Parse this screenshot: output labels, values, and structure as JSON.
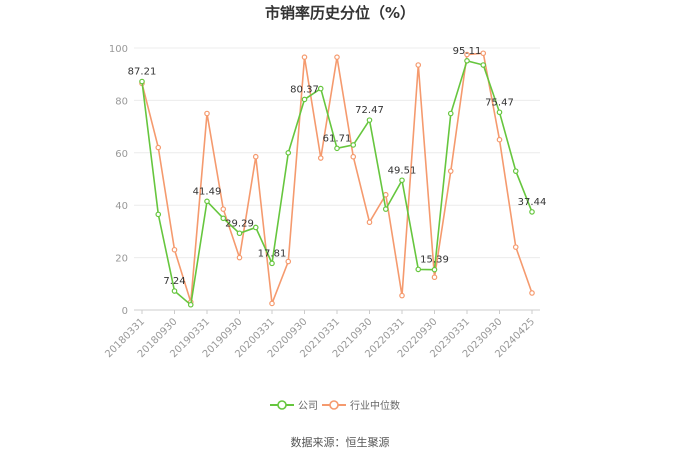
{
  "chart_data": {
    "type": "line",
    "title": "市销率历史分位（%）",
    "source": "数据来源：恒生聚源",
    "ylim": [
      0,
      100
    ],
    "yticks": [
      0,
      20,
      40,
      60,
      80,
      100
    ],
    "xtick_labels": [
      "20180331",
      "20180930",
      "20190331",
      "20190930",
      "20200331",
      "20200930",
      "20210331",
      "20210930",
      "20220331",
      "20220930",
      "20230331",
      "20230930",
      "20240425"
    ],
    "xtick_index": [
      0,
      2,
      4,
      6,
      8,
      10,
      12,
      14,
      16,
      18,
      20,
      22,
      24
    ],
    "grid": true,
    "legend_position": "bottom",
    "series": [
      {
        "name": "公司",
        "color": "#66c63e",
        "values": [
          87.21,
          36.5,
          7.24,
          2.0,
          41.49,
          35.0,
          29.29,
          31.5,
          17.81,
          60.0,
          80.37,
          84.5,
          61.71,
          63.0,
          72.47,
          38.5,
          49.51,
          15.5,
          15.39,
          75.0,
          95.11,
          93.5,
          75.47,
          53.0,
          37.44
        ],
        "labels": {
          "0": "87.21",
          "2": "7.24",
          "4": "41.49",
          "6": "29.29",
          "8": "17.81",
          "10": "80.37",
          "12": "61.71",
          "14": "72.47",
          "16": "49.51",
          "18": "15.39",
          "20": "95.11",
          "22": "75.47",
          "24": "37.44"
        }
      },
      {
        "name": "行业中位数",
        "color": "#f59a6e",
        "values": [
          86.5,
          62.0,
          23.0,
          3.0,
          75.0,
          38.5,
          20.0,
          58.5,
          2.5,
          18.5,
          96.5,
          58.0,
          96.5,
          58.5,
          33.5,
          44.0,
          5.5,
          93.5,
          12.5,
          53.0,
          97.5,
          98.0,
          65.0,
          24.0,
          6.5
        ]
      }
    ]
  }
}
